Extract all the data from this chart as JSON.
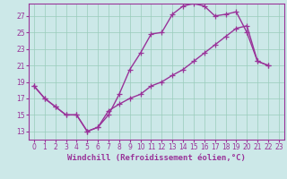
{
  "bg_color": "#cce8e8",
  "grid_color": "#99ccbb",
  "line_color": "#993399",
  "xlim": [
    -0.5,
    23.5
  ],
  "ylim": [
    12.0,
    28.5
  ],
  "yticks": [
    13,
    15,
    17,
    19,
    21,
    23,
    25,
    27
  ],
  "xticks": [
    0,
    1,
    2,
    3,
    4,
    5,
    6,
    7,
    8,
    9,
    10,
    11,
    12,
    13,
    14,
    15,
    16,
    17,
    18,
    19,
    20,
    21,
    22,
    23
  ],
  "line1_x": [
    0,
    1,
    2,
    3,
    4,
    5,
    6,
    7,
    8,
    9,
    10,
    11,
    12,
    13,
    14,
    15,
    16,
    17,
    18,
    19,
    20,
    21,
    22
  ],
  "line1_y": [
    18.5,
    17.0,
    16.0,
    15.0,
    15.0,
    13.0,
    13.5,
    15.0,
    17.5,
    20.5,
    22.5,
    24.8,
    25.0,
    27.2,
    28.2,
    28.5,
    28.2,
    27.0,
    27.2,
    27.5,
    25.0,
    21.5,
    21.0
  ],
  "line2_x": [
    0,
    1,
    2,
    3,
    4,
    5,
    6,
    7,
    8,
    9,
    10,
    11,
    12,
    13,
    14,
    15,
    16,
    17,
    18,
    19,
    20,
    21,
    22
  ],
  "line2_y": [
    18.5,
    17.0,
    16.0,
    15.0,
    15.0,
    13.0,
    13.5,
    15.5,
    16.3,
    17.0,
    17.5,
    18.5,
    19.0,
    19.8,
    20.5,
    21.5,
    22.5,
    23.5,
    24.5,
    25.5,
    25.8,
    21.5,
    21.0
  ],
  "xlabel": "Windchill (Refroidissement éolien,°C)",
  "marker": "+",
  "markersize": 4,
  "linewidth": 1.0,
  "xlabel_fontsize": 6.5,
  "tick_fontsize": 5.5
}
